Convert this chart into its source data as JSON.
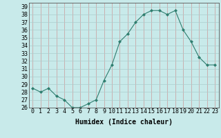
{
  "x": [
    0,
    1,
    2,
    3,
    4,
    5,
    6,
    7,
    8,
    9,
    10,
    11,
    12,
    13,
    14,
    15,
    16,
    17,
    18,
    19,
    20,
    21,
    22,
    23
  ],
  "y": [
    28.5,
    28.0,
    28.5,
    27.5,
    27.0,
    26.0,
    26.0,
    26.5,
    27.0,
    29.5,
    31.5,
    34.5,
    35.5,
    37.0,
    38.0,
    38.5,
    38.5,
    38.0,
    38.5,
    36.0,
    34.5,
    32.5,
    31.5,
    31.5
  ],
  "xlim": [
    -0.5,
    23.5
  ],
  "ylim": [
    26,
    39.5
  ],
  "yticks": [
    26,
    27,
    28,
    29,
    30,
    31,
    32,
    33,
    34,
    35,
    36,
    37,
    38,
    39
  ],
  "xticks": [
    0,
    1,
    2,
    3,
    4,
    5,
    6,
    7,
    8,
    9,
    10,
    11,
    12,
    13,
    14,
    15,
    16,
    17,
    18,
    19,
    20,
    21,
    22,
    23
  ],
  "xlabel": "Humidex (Indice chaleur)",
  "line_color": "#2e7d6e",
  "marker": "D",
  "marker_size": 2,
  "bg_color": "#c8eaea",
  "grid_major_color": "#cc9999",
  "grid_minor_color": "#aacccc",
  "axis_fontsize": 6,
  "label_fontsize": 7
}
